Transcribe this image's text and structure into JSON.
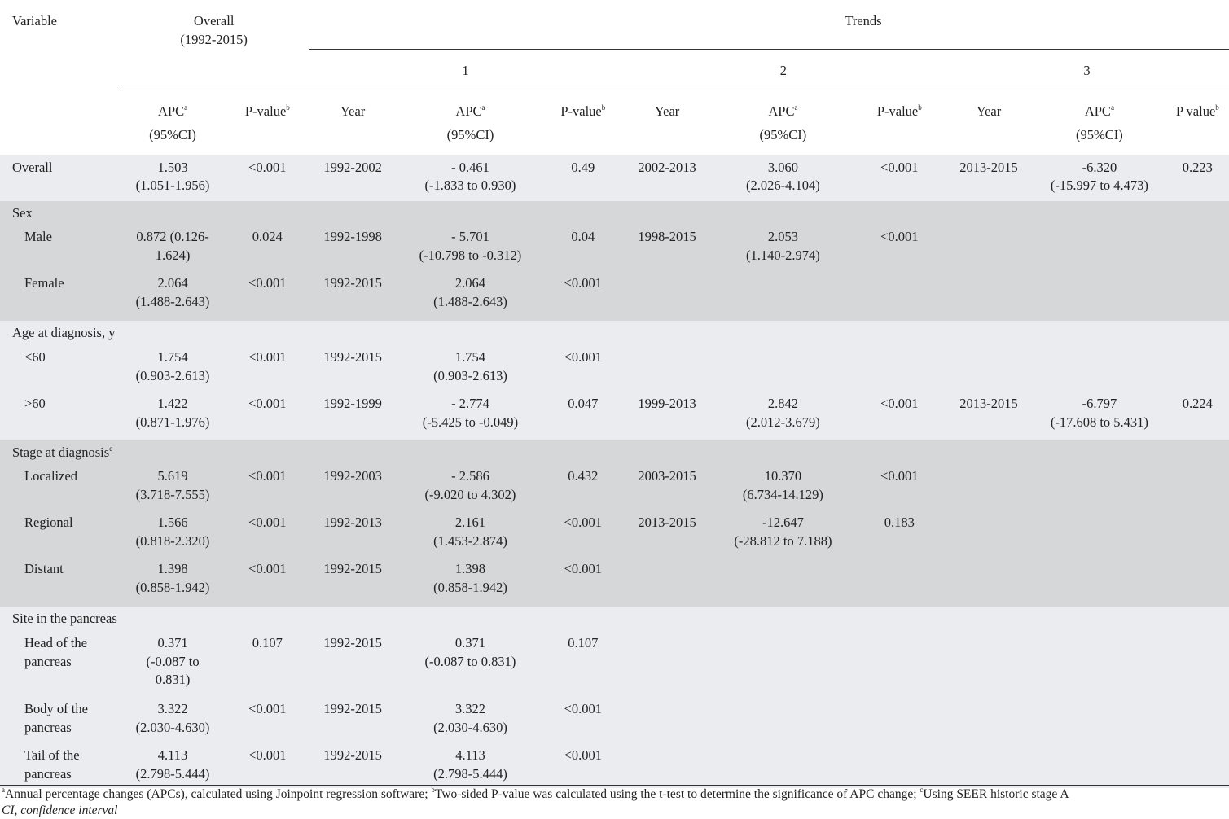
{
  "header": {
    "variable": "Variable",
    "overall": "Overall",
    "overall_years": "(1992-2015)",
    "trends": "Trends",
    "trend1": "1",
    "trend2": "2",
    "trend3": "3",
    "apc": "APC",
    "apc_sup": "a",
    "ci": "(95%CI)",
    "pvalue": "P-value",
    "pvalue_sup": "b",
    "pvalue3": "P value",
    "year": "Year"
  },
  "rows": {
    "overall": {
      "label": "Overall",
      "apc": "1.503",
      "ci": "(1.051-1.956)",
      "p": "<0.001",
      "y1": "1992-2002",
      "apc1": "- 0.461",
      "ci1": "(-1.833 to 0.930)",
      "p1": "0.49",
      "y2": "2002-2013",
      "apc2": "3.060",
      "ci2": "(2.026-4.104)",
      "p2": "<0.001",
      "y3": "2013-2015",
      "apc3": "-6.320",
      "ci3": "(-15.997 to 4.473)",
      "p3": "0.223"
    },
    "sex": {
      "label": "Sex"
    },
    "male": {
      "label": "Male",
      "apc": "0.872 (0.126-",
      "ci": "1.624)",
      "p": "0.024",
      "y1": "1992-1998",
      "apc1": "- 5.701",
      "ci1": "(-10.798 to -0.312)",
      "p1": "0.04",
      "y2": "1998-2015",
      "apc2": "2.053",
      "ci2": "(1.140-2.974)",
      "p2": "<0.001"
    },
    "female": {
      "label": "Female",
      "apc": "2.064",
      "ci": "(1.488-2.643)",
      "p": "<0.001",
      "y1": "1992-2015",
      "apc1": "2.064",
      "ci1": "(1.488-2.643)",
      "p1": "<0.001"
    },
    "age": {
      "label": "Age at diagnosis, y"
    },
    "lt60": {
      "label": "<60",
      "apc": "1.754",
      "ci": "(0.903-2.613)",
      "p": "<0.001",
      "y1": "1992-2015",
      "apc1": "1.754",
      "ci1": "(0.903-2.613)",
      "p1": "<0.001"
    },
    "gt60": {
      "label": ">60",
      "apc": "1.422",
      "ci": "(0.871-1.976)",
      "p": "<0.001",
      "y1": "1992-1999",
      "apc1": "- 2.774",
      "ci1": "(-5.425 to -0.049)",
      "p1": "0.047",
      "y2": "1999-2013",
      "apc2": "2.842",
      "ci2": "(2.012-3.679)",
      "p2": "<0.001",
      "y3": "2013-2015",
      "apc3": "-6.797",
      "ci3": "(-17.608 to 5.431)",
      "p3": "0.224"
    },
    "stage": {
      "label": "Stage at diagnosis",
      "sup": "c"
    },
    "localized": {
      "label": "Localized",
      "apc": "5.619",
      "ci": "(3.718-7.555)",
      "p": "<0.001",
      "y1": "1992-2003",
      "apc1": "- 2.586",
      "ci1": "(-9.020 to 4.302)",
      "p1": "0.432",
      "y2": "2003-2015",
      "apc2": "10.370",
      "ci2": "(6.734-14.129)",
      "p2": "<0.001"
    },
    "regional": {
      "label": "Regional",
      "apc": "1.566",
      "ci": "(0.818-2.320)",
      "p": "<0.001",
      "y1": "1992-2013",
      "apc1": "2.161",
      "ci1": "(1.453-2.874)",
      "p1": "<0.001",
      "y2": "2013-2015",
      "apc2": "-12.647",
      "ci2": "(-28.812 to 7.188)",
      "p2": "0.183"
    },
    "distant": {
      "label": "Distant",
      "apc": "1.398",
      "ci": "(0.858-1.942)",
      "p": "<0.001",
      "y1": "1992-2015",
      "apc1": "1.398",
      "ci1": "(0.858-1.942)",
      "p1": "<0.001"
    },
    "site": {
      "label": "Site in the pancreas"
    },
    "head": {
      "label1": "Head of the",
      "label2": "pancreas",
      "apc": "0.371",
      "ci_a": "(-0.087 to",
      "ci_b": "0.831)",
      "p": "0.107",
      "y1": "1992-2015",
      "apc1": "0.371",
      "ci1": "(-0.087 to 0.831)",
      "p1": "0.107"
    },
    "body": {
      "label1": "Body of the",
      "label2": "pancreas",
      "apc": "3.322",
      "ci": "(2.030-4.630)",
      "p": "<0.001",
      "y1": "1992-2015",
      "apc1": "3.322",
      "ci1": "(2.030-4.630)",
      "p1": "<0.001"
    },
    "tail": {
      "label1": "Tail of the",
      "label2": "pancreas",
      "apc": "4.113",
      "ci": "(2.798-5.444)",
      "p": "<0.001",
      "y1": "1992-2015",
      "apc1": "4.113",
      "ci1": "(2.798-5.444)",
      "p1": "<0.001"
    }
  },
  "footnote": {
    "a_sup": "a",
    "a_text": "Annual percentage changes (APCs), calculated using Joinpoint regression software; ",
    "b_sup": "b",
    "b_text": "Two-sided P-value was calculated using the t-test to determine the significance of APC change; ",
    "c_sup": "c",
    "c_text": "Using SEER historic stage A",
    "line2": "CI, confidence interval"
  }
}
